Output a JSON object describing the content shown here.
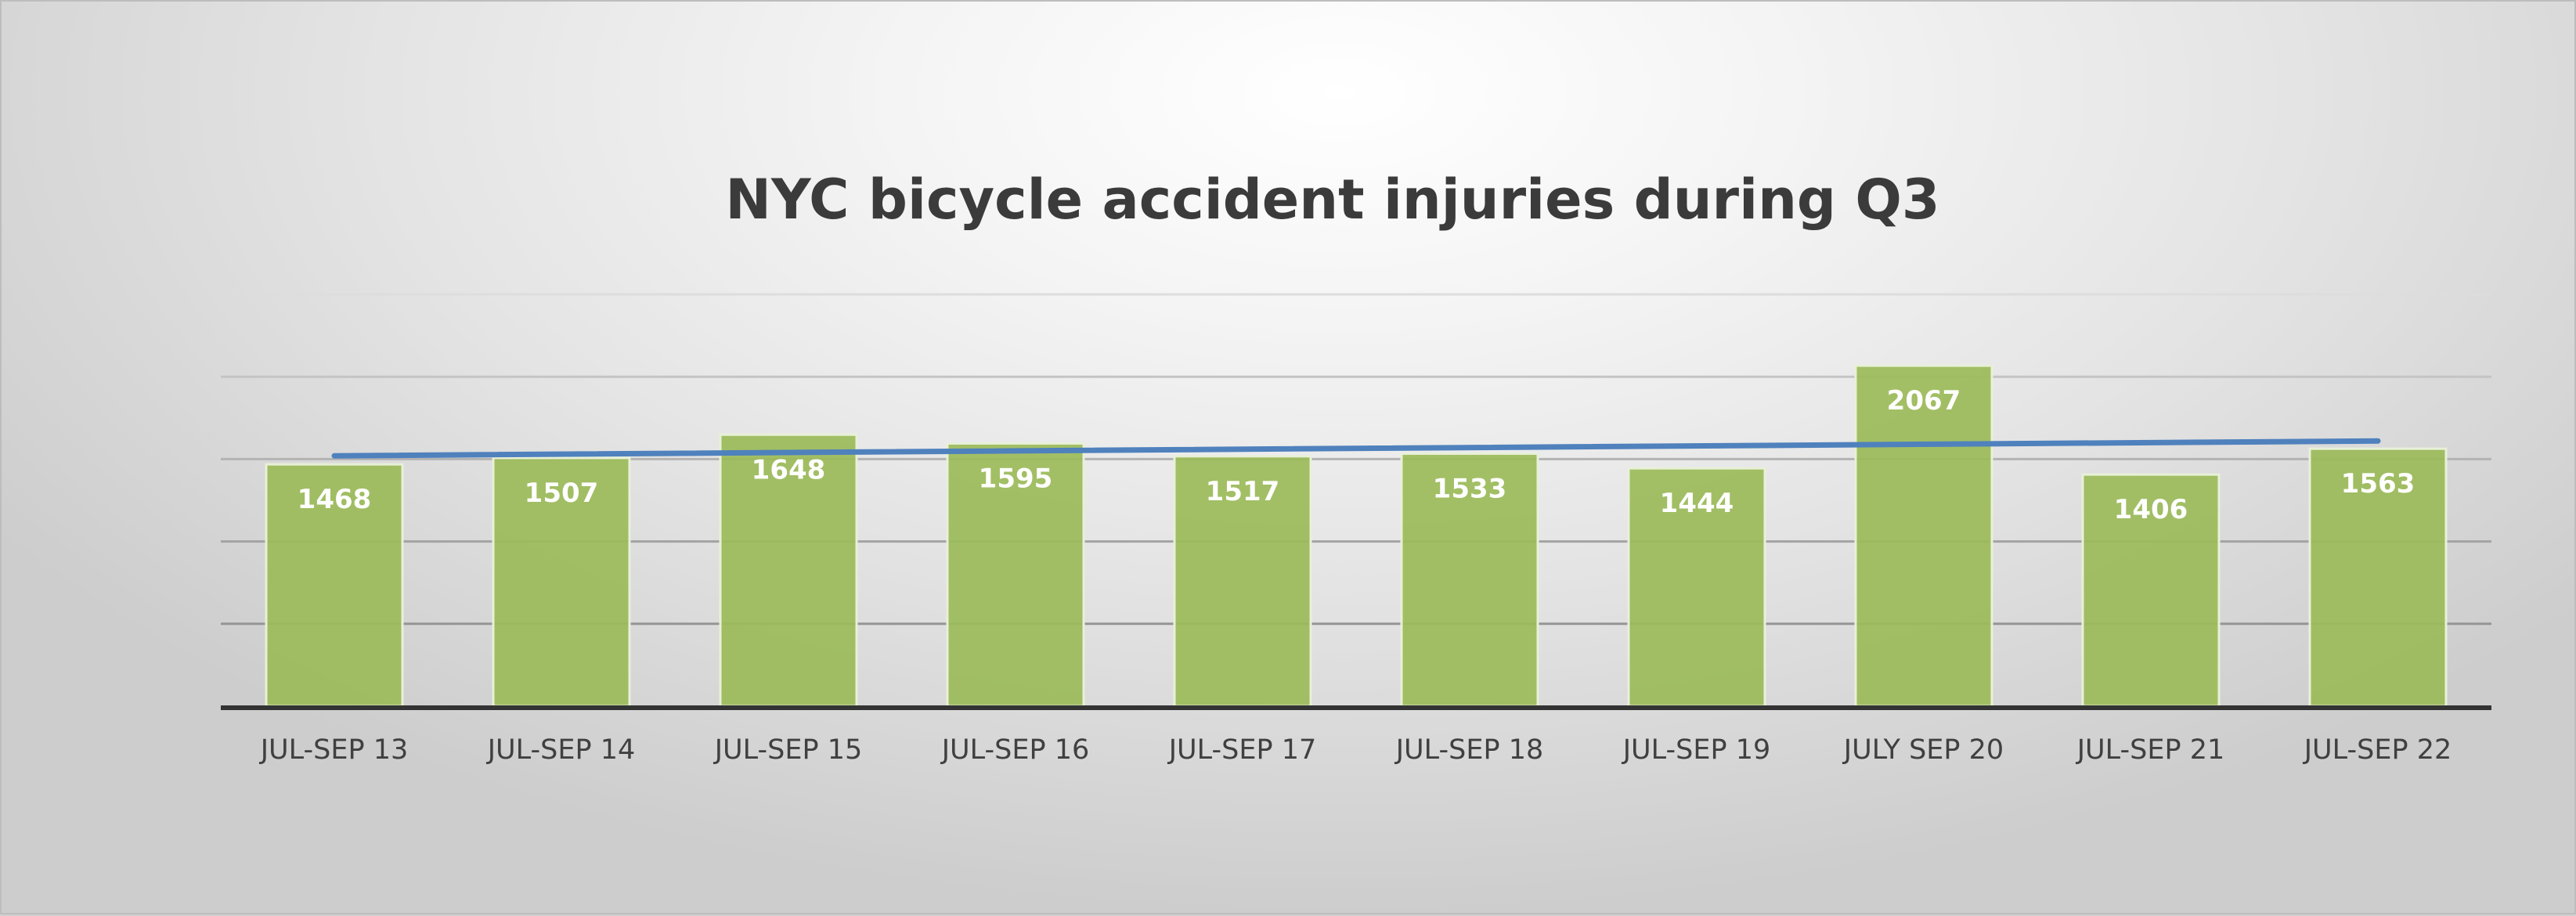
{
  "chart_data": {
    "type": "bar",
    "title": "NYC bicycle accident injuries during Q3",
    "categories": [
      "JUL-SEP 13",
      "JUL-SEP 14",
      "JUL-SEP 15",
      "JUL-SEP 16",
      "JUL-SEP 17",
      "JUL-SEP 18",
      "JUL-SEP 19",
      "JULY SEP 20",
      "JUL-SEP 21",
      "JUL-SEP 22"
    ],
    "values": [
      1468,
      1507,
      1648,
      1595,
      1517,
      1533,
      1444,
      2067,
      1406,
      1563
    ],
    "ylim": [
      0,
      2500
    ],
    "gridlines": [
      500,
      1000,
      1500,
      2000,
      2500
    ],
    "trendline": {
      "type": "linear",
      "start": 1520,
      "end": 1610
    },
    "bar_color": "#9bbb59",
    "trend_color": "#4f81bd",
    "data_labels": true,
    "grid": true,
    "legend": "none"
  }
}
